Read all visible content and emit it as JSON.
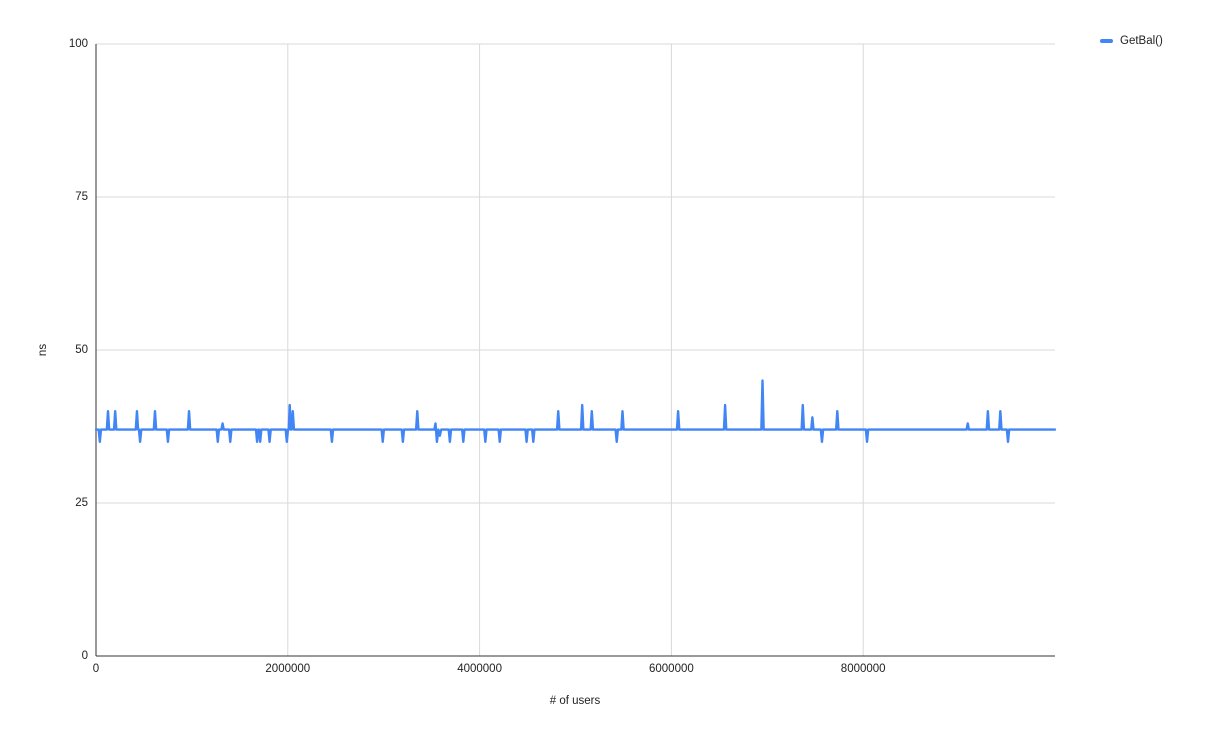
{
  "colors": {
    "series_blue": "#4285f4",
    "gridline": "#d9d9d9",
    "axis_line": "#333333",
    "text": "#222222",
    "background": "#ffffff"
  },
  "legend": {
    "label": "GetBal()"
  },
  "chart_data": {
    "type": "line",
    "title": "",
    "xlabel": "# of users",
    "ylabel": "ns",
    "xlim": [
      0,
      10000000
    ],
    "ylim": [
      0,
      100
    ],
    "x_ticks": [
      0,
      2000000,
      4000000,
      6000000,
      8000000
    ],
    "y_ticks": [
      0,
      25,
      50,
      75,
      100
    ],
    "grid": true,
    "legend_position": "top-right",
    "series": [
      {
        "name": "GetBal()",
        "color": "#4285f4",
        "baseline_ns": 37,
        "points": [
          [
            0,
            37
          ],
          [
            28000,
            37
          ],
          [
            40000,
            35
          ],
          [
            52000,
            37
          ],
          [
            113000,
            37
          ],
          [
            125000,
            40
          ],
          [
            137000,
            37
          ],
          [
            188000,
            37
          ],
          [
            200000,
            40
          ],
          [
            212000,
            37
          ],
          [
            415000,
            37
          ],
          [
            427000,
            40
          ],
          [
            439000,
            37
          ],
          [
            448000,
            37
          ],
          [
            460000,
            35
          ],
          [
            472000,
            37
          ],
          [
            603000,
            37
          ],
          [
            615000,
            40
          ],
          [
            627000,
            37
          ],
          [
            738000,
            37
          ],
          [
            750000,
            35
          ],
          [
            762000,
            37
          ],
          [
            958000,
            37
          ],
          [
            970000,
            40
          ],
          [
            982000,
            37
          ],
          [
            1258000,
            37
          ],
          [
            1270000,
            35
          ],
          [
            1282000,
            37
          ],
          [
            1308000,
            37
          ],
          [
            1320000,
            38
          ],
          [
            1332000,
            37
          ],
          [
            1388000,
            37
          ],
          [
            1400000,
            35
          ],
          [
            1412000,
            37
          ],
          [
            1668000,
            37
          ],
          [
            1680000,
            35
          ],
          [
            1692000,
            37
          ],
          [
            1700000,
            37
          ],
          [
            1712000,
            35
          ],
          [
            1724000,
            37
          ],
          [
            1798000,
            37
          ],
          [
            1810000,
            35
          ],
          [
            1822000,
            37
          ],
          [
            1978000,
            37
          ],
          [
            1990000,
            35
          ],
          [
            2002000,
            37
          ],
          [
            2010000,
            37
          ],
          [
            2020000,
            41
          ],
          [
            2032000,
            37
          ],
          [
            2040000,
            37
          ],
          [
            2052000,
            40
          ],
          [
            2064000,
            37
          ],
          [
            2448000,
            37
          ],
          [
            2460000,
            35
          ],
          [
            2472000,
            37
          ],
          [
            2978000,
            37
          ],
          [
            2990000,
            35
          ],
          [
            3002000,
            37
          ],
          [
            3188000,
            37
          ],
          [
            3200000,
            35
          ],
          [
            3212000,
            37
          ],
          [
            3338000,
            37
          ],
          [
            3350000,
            40
          ],
          [
            3362000,
            37
          ],
          [
            3528000,
            37
          ],
          [
            3540000,
            38
          ],
          [
            3555000,
            35
          ],
          [
            3570000,
            37
          ],
          [
            3585000,
            36
          ],
          [
            3600000,
            37
          ],
          [
            3678000,
            37
          ],
          [
            3690000,
            35
          ],
          [
            3702000,
            37
          ],
          [
            3818000,
            37
          ],
          [
            3830000,
            35
          ],
          [
            3842000,
            37
          ],
          [
            4048000,
            37
          ],
          [
            4060000,
            35
          ],
          [
            4072000,
            37
          ],
          [
            4198000,
            37
          ],
          [
            4210000,
            35
          ],
          [
            4222000,
            37
          ],
          [
            4478000,
            37
          ],
          [
            4490000,
            35
          ],
          [
            4502000,
            37
          ],
          [
            4548000,
            37
          ],
          [
            4560000,
            35
          ],
          [
            4572000,
            37
          ],
          [
            4808000,
            37
          ],
          [
            4820000,
            40
          ],
          [
            4832000,
            37
          ],
          [
            5058000,
            37
          ],
          [
            5070000,
            41
          ],
          [
            5082000,
            37
          ],
          [
            5158000,
            37
          ],
          [
            5170000,
            40
          ],
          [
            5182000,
            37
          ],
          [
            5418000,
            37
          ],
          [
            5430000,
            35
          ],
          [
            5442000,
            37
          ],
          [
            5478000,
            37
          ],
          [
            5490000,
            40
          ],
          [
            5502000,
            37
          ],
          [
            6058000,
            37
          ],
          [
            6070000,
            40
          ],
          [
            6082000,
            37
          ],
          [
            6548000,
            37
          ],
          [
            6560000,
            41
          ],
          [
            6572000,
            37
          ],
          [
            6938000,
            37
          ],
          [
            6950000,
            45
          ],
          [
            6962000,
            37
          ],
          [
            7358000,
            37
          ],
          [
            7370000,
            41
          ],
          [
            7382000,
            37
          ],
          [
            7458000,
            37
          ],
          [
            7470000,
            39
          ],
          [
            7482000,
            37
          ],
          [
            7558000,
            37
          ],
          [
            7570000,
            35
          ],
          [
            7582000,
            37
          ],
          [
            7718000,
            37
          ],
          [
            7730000,
            40
          ],
          [
            7742000,
            37
          ],
          [
            8028000,
            37
          ],
          [
            8040000,
            35
          ],
          [
            8052000,
            37
          ],
          [
            9078000,
            37
          ],
          [
            9090000,
            38
          ],
          [
            9102000,
            37
          ],
          [
            9288000,
            37
          ],
          [
            9300000,
            40
          ],
          [
            9312000,
            37
          ],
          [
            9418000,
            37
          ],
          [
            9430000,
            40
          ],
          [
            9442000,
            37
          ],
          [
            9498000,
            37
          ],
          [
            9510000,
            35
          ],
          [
            9522000,
            37
          ],
          [
            10000000,
            37
          ]
        ]
      }
    ]
  }
}
